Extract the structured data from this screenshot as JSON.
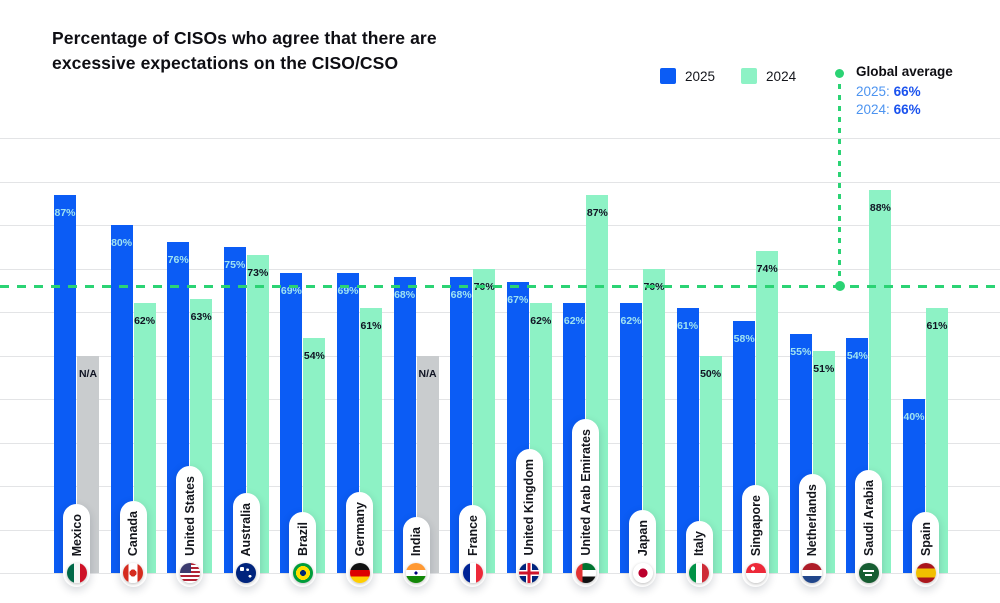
{
  "title": {
    "line1": "Percentage of CISOs who agree that there are",
    "line2": "excessive expectations on the CISO/CSO"
  },
  "legend": [
    {
      "label": "2025",
      "color": "#0b5cf5"
    },
    {
      "label": "2024",
      "color": "#8df2c5"
    }
  ],
  "global_average": {
    "label": "Global average",
    "lines": [
      {
        "prefix": "2025:",
        "value": "66%"
      },
      {
        "prefix": "2024:",
        "value": "66%"
      }
    ]
  },
  "colors": {
    "bar_2025": "#0b5cf5",
    "bar_2024": "#8df2c5",
    "bar_na": "#c9ccce",
    "average_line": "#2bd374",
    "label_on_blue": "#9fe3f2",
    "label_on_green": "#101423",
    "gridline": "#e3e4e6"
  },
  "chart_data": {
    "type": "bar",
    "title": "Percentage of CISOs who agree that there are excessive expectations on the CISO/CSO",
    "categories": [
      "Mexico",
      "Canada",
      "United States",
      "Australia",
      "Brazil",
      "Germany",
      "India",
      "France",
      "United Kingdom",
      "United Arab Emirates",
      "Japan",
      "Italy",
      "Singapore",
      "Netherlands",
      "Saudi Arabia",
      "Spain"
    ],
    "flags": [
      "mx",
      "ca",
      "us",
      "au",
      "br",
      "de",
      "in",
      "fr",
      "gb",
      "ae",
      "jp",
      "it",
      "sg",
      "nl",
      "sa",
      "es"
    ],
    "series": [
      {
        "name": "2025",
        "values": [
          87,
          80,
          76,
          75,
          69,
          69,
          68,
          68,
          67,
          62,
          62,
          61,
          58,
          55,
          54,
          40
        ]
      },
      {
        "name": "2024",
        "values": [
          null,
          62,
          63,
          73,
          54,
          61,
          null,
          70,
          62,
          87,
          70,
          50,
          74,
          51,
          88,
          61
        ]
      }
    ],
    "na_label": "N/A",
    "na_bar_display_pct": 50,
    "value_suffix": "%",
    "ylim": [
      0,
      100
    ],
    "grid": "horizontal, 10% steps, no axis labels",
    "legend_position": "top-right",
    "average_line": {
      "label": "Global average",
      "avg_2025": 66,
      "avg_2024": 66,
      "shown_at": 66
    }
  }
}
